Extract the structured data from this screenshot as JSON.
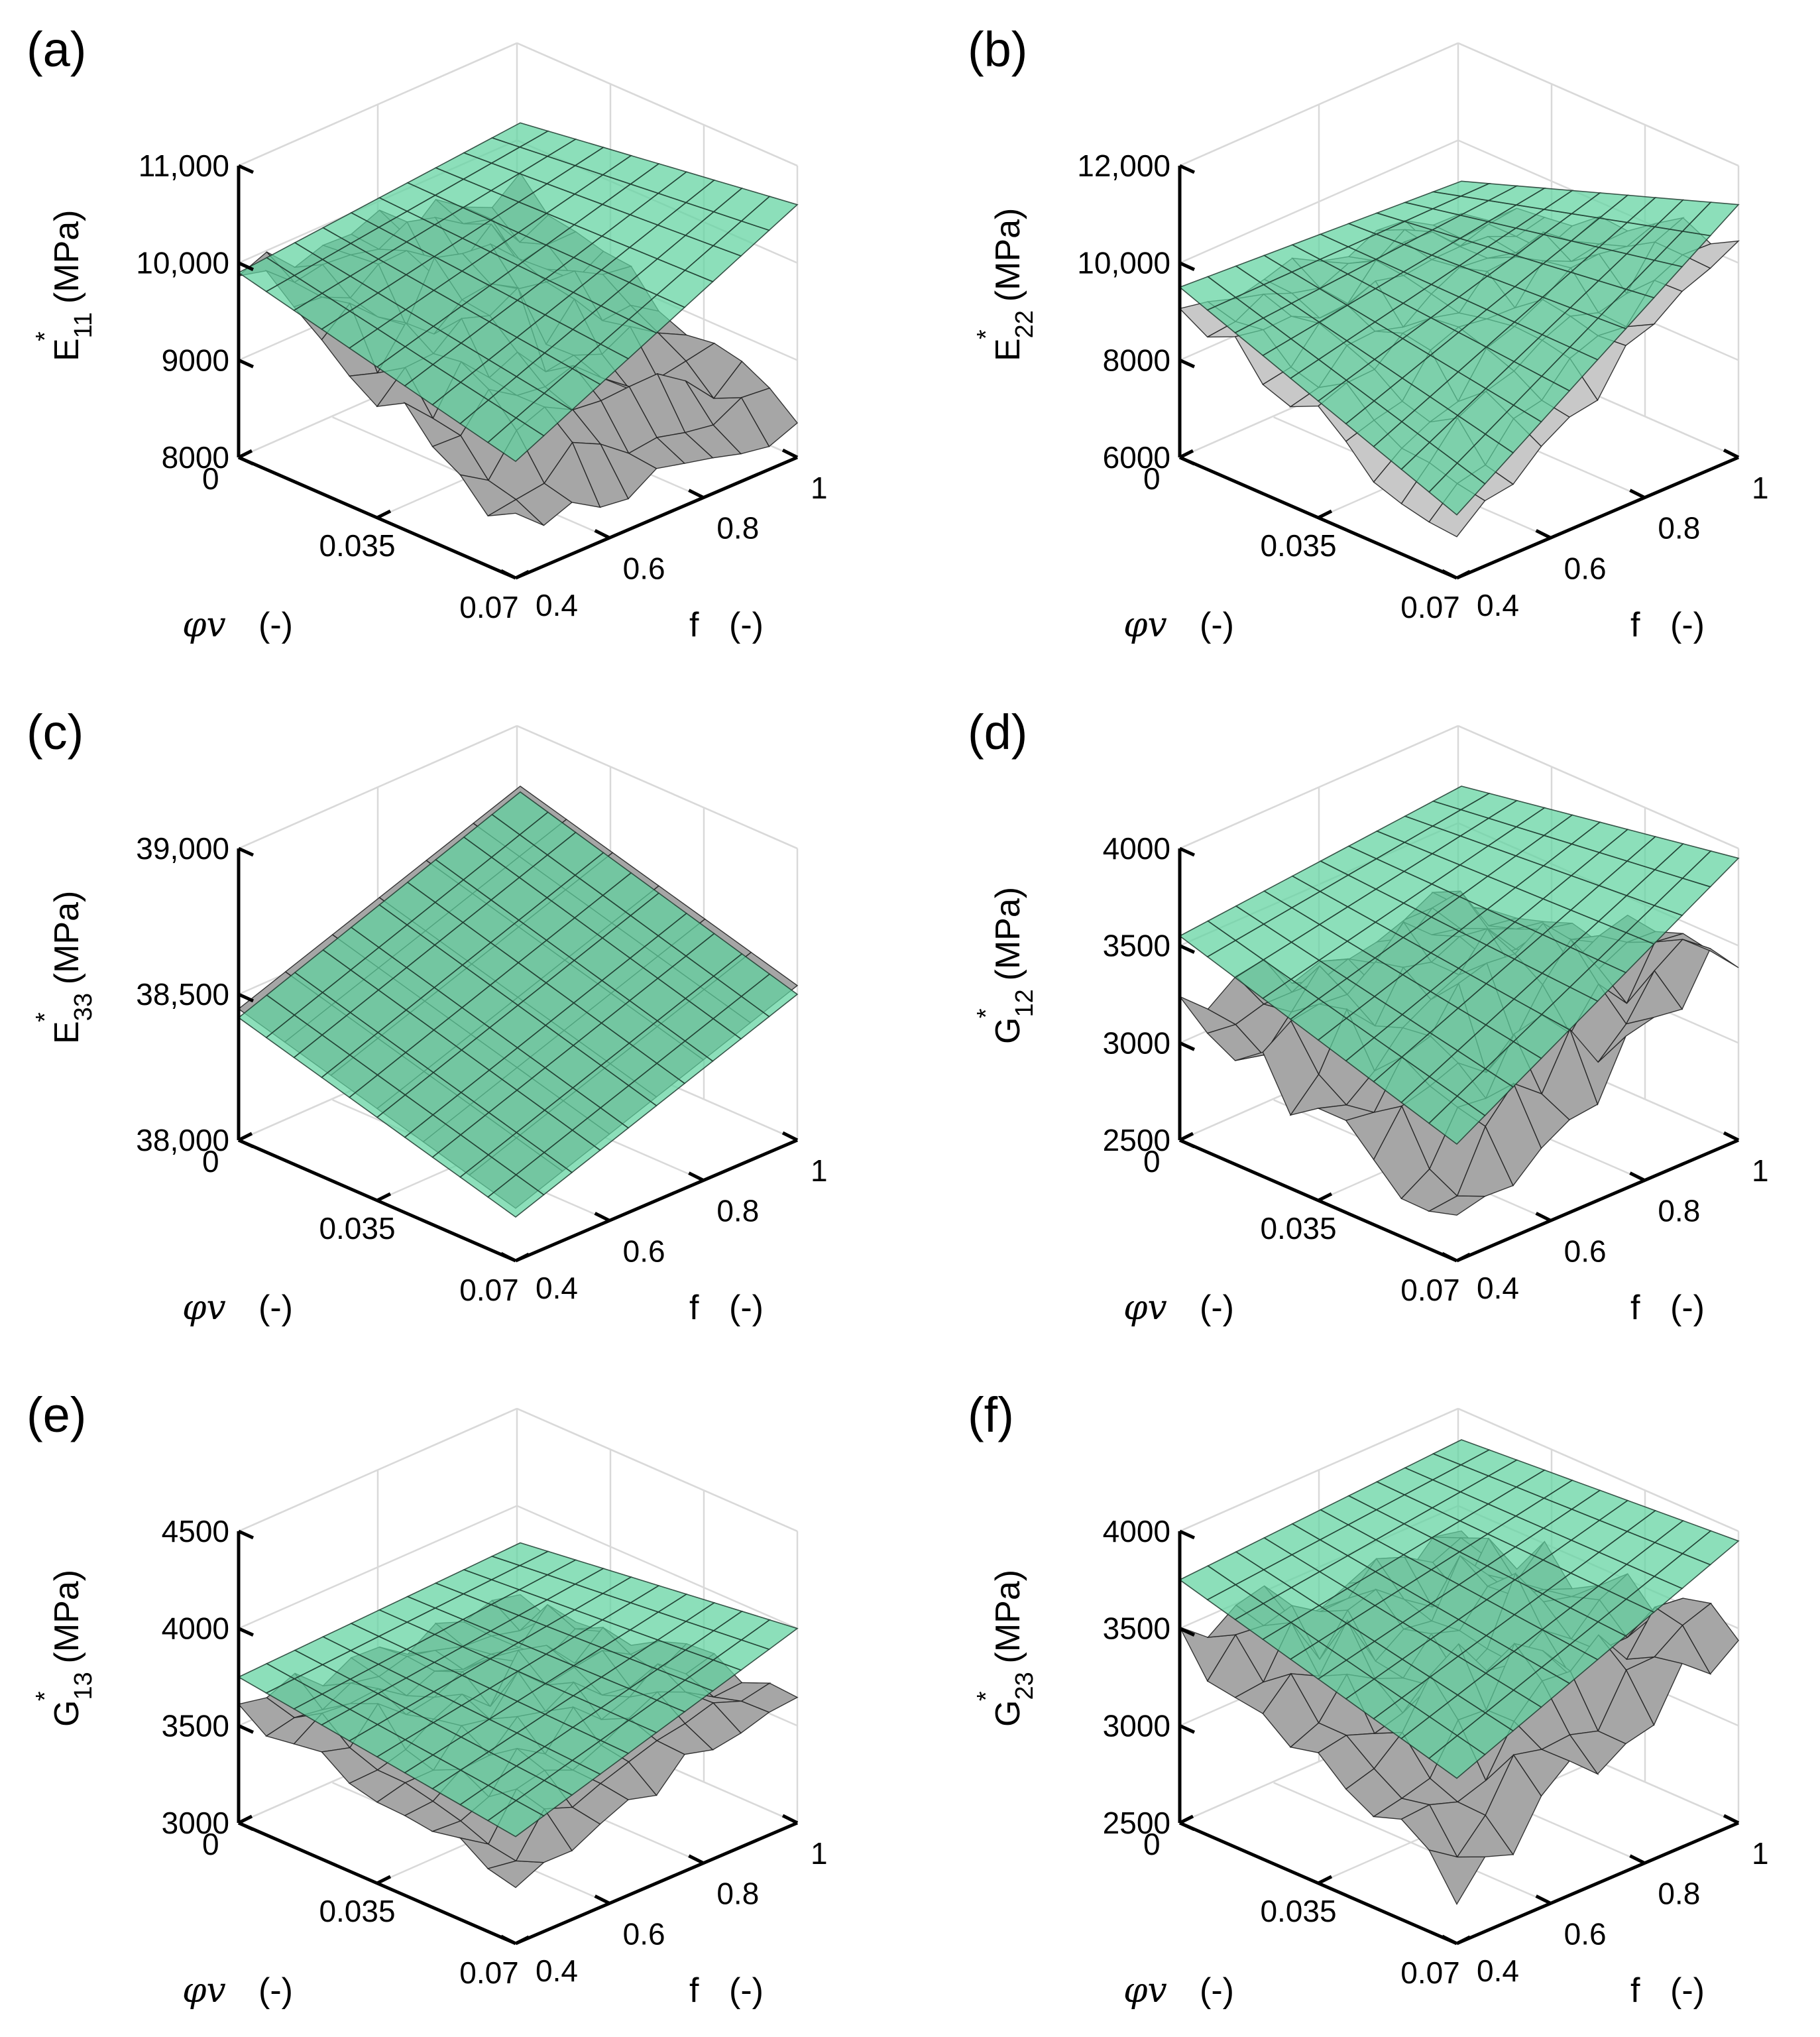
{
  "chart_data": [
    {
      "type": "surface",
      "panel": "(a)",
      "zlabel": "E",
      "zsub": "11",
      "zsup": "*",
      "zunit": "(MPa)",
      "zlim": [
        8000,
        11000
      ],
      "zticks": [
        8000,
        9000,
        10000,
        11000
      ],
      "ztick_labels": [
        "8000",
        "9000",
        "10,000",
        "11,000"
      ],
      "xlabel": "φv",
      "xunit": "(-)",
      "xlim": [
        0,
        0.07
      ],
      "xticks": [
        "0",
        "0.035",
        "0.07"
      ],
      "ylabel": "f",
      "yunit": "(-)",
      "ylim": [
        0.4,
        1
      ],
      "yticks": [
        "0.4",
        "0.6",
        "0.8",
        "1"
      ],
      "series": [
        {
          "surface": "fitted",
          "color": "#5fd3a0",
          "corners": {
            "x0_y0": 9900,
            "x1_y0": 9200,
            "x0_y1": 10200,
            "x1_y1": 10600
          }
        },
        {
          "surface": "simulated",
          "color": "#a6a6a6",
          "corners": {
            "x0_y0": 10000,
            "x1_y0": 8500,
            "x0_y1": 9500,
            "x1_y1": 8300
          },
          "noise": 350
        }
      ]
    },
    {
      "type": "surface",
      "panel": "(b)",
      "zlabel": "E",
      "zsub": "22",
      "zsup": "*",
      "zunit": "(MPa)",
      "zlim": [
        6000,
        12000
      ],
      "zticks": [
        6000,
        8000,
        10000,
        12000
      ],
      "ztick_labels": [
        "6000",
        "8000",
        "10,000",
        "12,000"
      ],
      "xlabel": "φv",
      "xunit": "(-)",
      "xlim": [
        0,
        0.07
      ],
      "xticks": [
        "0",
        "0.035",
        "0.07"
      ],
      "ylabel": "f",
      "yunit": "(-)",
      "ylim": [
        0.4,
        1
      ],
      "yticks": [
        "0.4",
        "0.6",
        "0.8",
        "1"
      ],
      "series": [
        {
          "surface": "fitted",
          "color": "#5fd3a0",
          "corners": {
            "x0_y0": 9500,
            "x1_y0": 7300,
            "x0_y1": 9200,
            "x1_y1": 11200
          }
        },
        {
          "surface": "simulated",
          "color": "#c8c8c8",
          "corners": {
            "x0_y0": 9200,
            "x1_y0": 6800,
            "x0_y1": 8500,
            "x1_y1": 10600
          },
          "noise": 500
        }
      ]
    },
    {
      "type": "surface",
      "panel": "(c)",
      "zlabel": "E",
      "zsub": "33",
      "zsup": "*",
      "zunit": "(MPa)",
      "zlim": [
        38000,
        39000
      ],
      "zticks": [
        38000,
        38500,
        39000
      ],
      "ztick_labels": [
        "38,000",
        "38,500",
        "39,000"
      ],
      "xlabel": "φv",
      "xunit": "(-)",
      "xlim": [
        0,
        0.07
      ],
      "xticks": [
        "0",
        "0.035",
        "0.07"
      ],
      "ylabel": "f",
      "yunit": "(-)",
      "ylim": [
        0.4,
        1
      ],
      "yticks": [
        "0.4",
        "0.6",
        "0.8",
        "1"
      ],
      "series": [
        {
          "surface": "fitted",
          "color": "#5fd3a0",
          "corners": {
            "x0_y0": 38420,
            "x1_y0": 38150,
            "x0_y1": 38780,
            "x1_y1": 38500
          }
        },
        {
          "surface": "simulated",
          "color": "#a6a6a6",
          "corners": {
            "x0_y0": 38450,
            "x1_y0": 38180,
            "x0_y1": 38800,
            "x1_y1": 38530
          },
          "noise": 0
        }
      ]
    },
    {
      "type": "surface",
      "panel": "(d)",
      "zlabel": "G",
      "zsub": "12",
      "zsup": "*",
      "zunit": "(MPa)",
      "zlim": [
        2500,
        4000
      ],
      "zticks": [
        2500,
        3000,
        3500,
        4000
      ],
      "ztick_labels": [
        "2500",
        "3000",
        "3500",
        "4000"
      ],
      "xlabel": "φv",
      "xunit": "(-)",
      "xlim": [
        0,
        0.07
      ],
      "xticks": [
        "0",
        "0.035",
        "0.07"
      ],
      "ylabel": "f",
      "yunit": "(-)",
      "ylim": [
        0.4,
        1
      ],
      "yticks": [
        "0.4",
        "0.6",
        "0.8",
        "1"
      ],
      "series": [
        {
          "surface": "fitted",
          "color": "#5fd3a0",
          "corners": {
            "x0_y0": 3550,
            "x1_y0": 3100,
            "x0_y1": 3700,
            "x1_y1": 3950
          }
        },
        {
          "surface": "simulated",
          "color": "#a6a6a6",
          "corners": {
            "x0_y0": 3200,
            "x1_y0": 2700,
            "x0_y1": 3150,
            "x1_y1": 3500
          },
          "noise": 220
        }
      ]
    },
    {
      "type": "surface",
      "panel": "(e)",
      "zlabel": "G",
      "zsub": "13",
      "zsup": "*",
      "zunit": "(MPa)",
      "zlim": [
        3000,
        4500
      ],
      "zticks": [
        3000,
        3500,
        4000,
        4500
      ],
      "ztick_labels": [
        "3000",
        "3500",
        "4000",
        "4500"
      ],
      "xlabel": "φv",
      "xunit": "(-)",
      "xlim": [
        0,
        0.07
      ],
      "xticks": [
        "0",
        "0.035",
        "0.07"
      ],
      "ylabel": "f",
      "yunit": "(-)",
      "ylim": [
        0.4,
        1
      ],
      "yticks": [
        "0.4",
        "0.6",
        "0.8",
        "1"
      ],
      "series": [
        {
          "surface": "fitted",
          "color": "#5fd3a0",
          "corners": {
            "x0_y0": 3750,
            "x1_y0": 3550,
            "x0_y1": 3820,
            "x1_y1": 4000
          }
        },
        {
          "surface": "simulated",
          "color": "#a6a6a6",
          "corners": {
            "x0_y0": 3600,
            "x1_y0": 3300,
            "x0_y1": 3550,
            "x1_y1": 3700
          },
          "noise": 130
        }
      ]
    },
    {
      "type": "surface",
      "panel": "(f)",
      "zlabel": "G",
      "zsub": "23",
      "zsup": "*",
      "zunit": "(MPa)",
      "zlim": [
        2500,
        4000
      ],
      "zticks": [
        2500,
        3000,
        3500,
        4000
      ],
      "ztick_labels": [
        "2500",
        "3000",
        "3500",
        "4000"
      ],
      "xlabel": "φv",
      "xunit": "(-)",
      "xlim": [
        0,
        0.07
      ],
      "xticks": [
        "0",
        "0.035",
        "0.07"
      ],
      "ylabel": "f",
      "yunit": "(-)",
      "ylim": [
        0.4,
        1
      ],
      "yticks": [
        "0.4",
        "0.6",
        "0.8",
        "1"
      ],
      "series": [
        {
          "surface": "fitted",
          "color": "#5fd3a0",
          "corners": {
            "x0_y0": 3750,
            "x1_y0": 3350,
            "x0_y1": 3850,
            "x1_y1": 3950
          }
        },
        {
          "surface": "simulated",
          "color": "#a6a6a6",
          "corners": {
            "x0_y0": 3450,
            "x1_y0": 2800,
            "x0_y1": 3350,
            "x1_y1": 3500
          },
          "noise": 200
        }
      ]
    }
  ]
}
